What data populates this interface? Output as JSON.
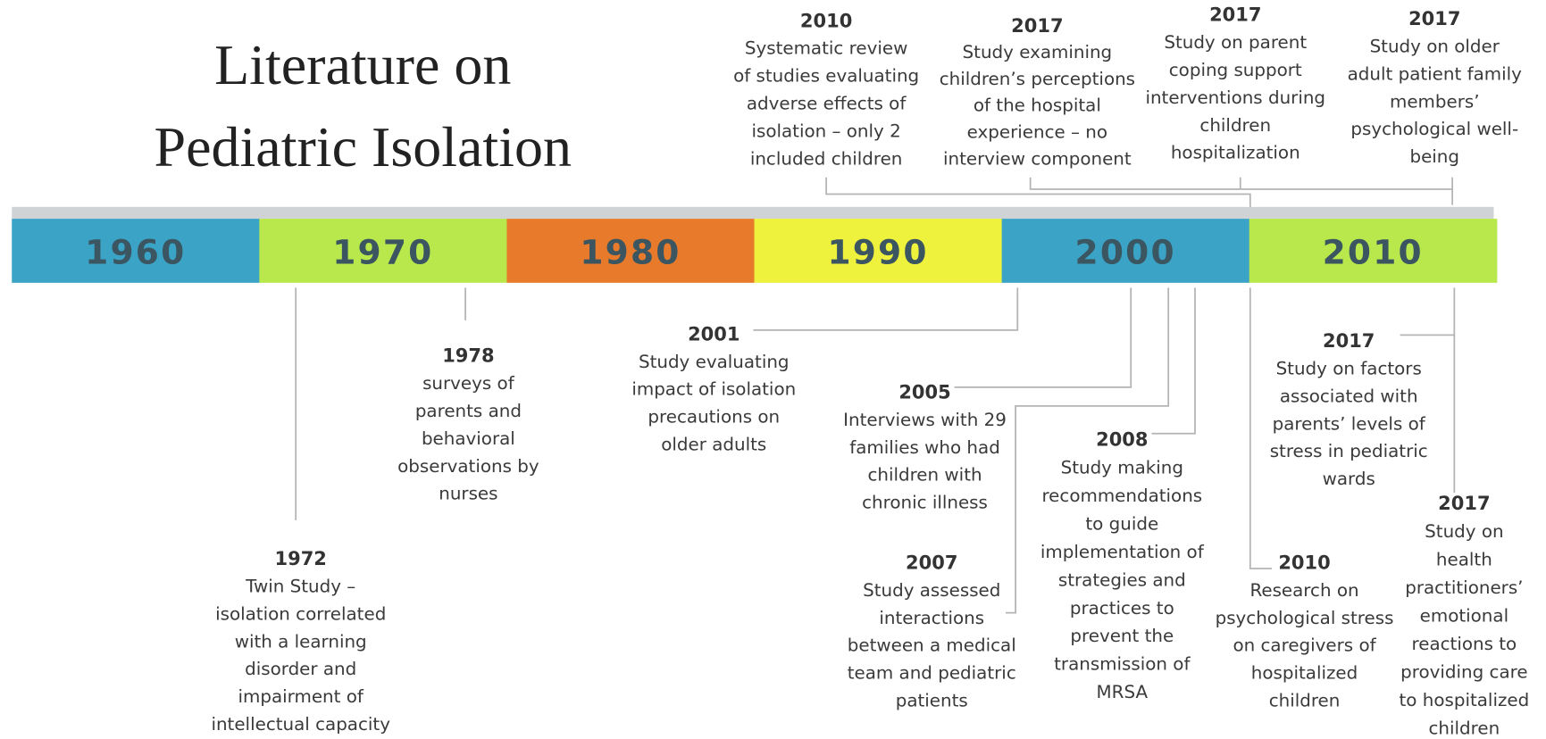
{
  "title": [
    "Literature on",
    "Pediatric Isolation"
  ],
  "decades": [
    "1960",
    "1970",
    "1980",
    "1990",
    "2000",
    "2010"
  ],
  "events": [
    {
      "year": "2010",
      "lines": [
        "Systematic review",
        "of studies evaluating",
        "adverse effects of",
        "isolation – only 2",
        "included children"
      ]
    },
    {
      "year": "2017",
      "lines": [
        "Study examining",
        "children’s perceptions",
        "of the hospital",
        "experience – no",
        "interview component"
      ]
    },
    {
      "year": "2017",
      "lines": [
        "Study on parent",
        "coping support",
        "interventions during",
        "children",
        "hospitalization"
      ]
    },
    {
      "year": "2017",
      "lines": [
        "Study on older",
        "adult patient family",
        "members’",
        "psychological well-",
        "being"
      ]
    },
    {
      "year": "1972",
      "lines": [
        "Twin Study –",
        "isolation correlated",
        "with a learning",
        "disorder and",
        "impairment of",
        "intellectual capacity"
      ]
    },
    {
      "year": "1978",
      "lines": [
        "surveys of",
        "parents and",
        "behavioral",
        "observations by",
        "nurses"
      ]
    },
    {
      "year": "2001",
      "lines": [
        "Study evaluating",
        "impact of isolation",
        "precautions on",
        "older adults"
      ]
    },
    {
      "year": "2005",
      "lines": [
        "Interviews with 29",
        "families who had",
        "children with",
        "chronic illness"
      ]
    },
    {
      "year": "2007",
      "lines": [
        "Study assessed",
        "interactions",
        "between a medical",
        "team and pediatric",
        "patients"
      ]
    },
    {
      "year": "2008",
      "lines": [
        "Study making",
        "recommendations",
        "to guide",
        "implementation of",
        "strategies and",
        "practices to",
        "prevent the",
        "transmission of",
        "MRSA"
      ]
    },
    {
      "year": "2017",
      "lines": [
        "Study on factors",
        "associated with",
        "parents’ levels of",
        "stress in pediatric",
        "wards"
      ]
    },
    {
      "year": "2010",
      "lines": [
        "Research on",
        "psychological stress",
        "on caregivers of",
        "hospitalized",
        "children"
      ]
    },
    {
      "year": "2017",
      "lines": [
        "Study on",
        "health",
        "practitioners’",
        "emotional",
        "reactions to",
        "providing care",
        "to hospitalized",
        "children"
      ]
    }
  ]
}
